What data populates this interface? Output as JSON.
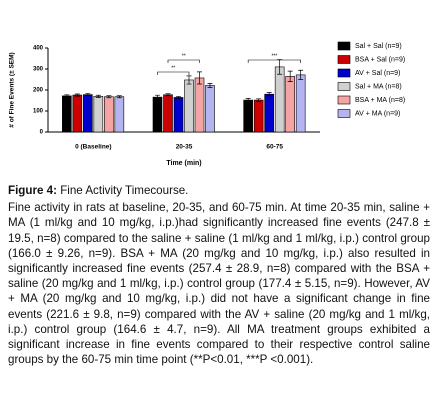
{
  "chart_data": {
    "type": "bar",
    "ylabel": "# of Fine Events (± SEM)",
    "xlabel": "Time (min)",
    "categories": [
      "0 (Baseline)",
      "20-35",
      "60-75"
    ],
    "ylim": [
      0,
      400
    ],
    "yticks": [
      0,
      100,
      200,
      300,
      400
    ],
    "series": [
      {
        "name": "Sal + Sal (n=9)",
        "color": "#000000",
        "values": [
          172,
          166.0,
          152
        ],
        "errors": [
          5,
          9.26,
          8
        ]
      },
      {
        "name": "BSA + Sal (n=9)",
        "color": "#cc0000",
        "values": [
          176,
          177.4,
          152
        ],
        "errors": [
          5,
          5.15,
          6
        ]
      },
      {
        "name": "AV + Sal (n=9)",
        "color": "#0000cc",
        "values": [
          178,
          164.6,
          180
        ],
        "errors": [
          5,
          4.7,
          8
        ]
      },
      {
        "name": "Sal + MA (n=8)",
        "color": "#d0d0d0",
        "values": [
          170,
          247.8,
          310
        ],
        "errors": [
          5,
          19.5,
          35
        ]
      },
      {
        "name": "BSA + MA (n=8)",
        "color": "#f4a4a4",
        "values": [
          168,
          257.4,
          265
        ],
        "errors": [
          5,
          28.9,
          25
        ]
      },
      {
        "name": "AV + MA (n=9)",
        "color": "#b4b4f0",
        "values": [
          168,
          221.6,
          272
        ],
        "errors": [
          5,
          9.8,
          22
        ]
      }
    ],
    "annotations": [
      "**",
      "**",
      "***"
    ]
  },
  "caption": {
    "label": "Figure 4:",
    "title": " Fine Activity Timecourse.",
    "body": "Fine activity in rats at baseline, 20-35, and 60-75 min. At time 20-35 min, saline + MA (1 ml/kg and 10 mg/kg, i.p.)had significantly increased fine events (247.8 ± 19.5, n=8) compared to the saline + saline (1 ml/kg and 1 ml/kg, i.p.) control group (166.0 ± 9.26, n=9). BSA + MA (20 mg/kg and 10 mg/kg, i.p.) also resulted in significantly increased fine events (257.4 ± 28.9, n=8) compared with the BSA + saline (20 mg/kg and 1 ml/kg, i.p.) control group (177.4 ± 5.15, n=9). However, AV + MA (20 mg/kg and 10 mg/kg, i.p.) did not have a significant change in fine events (221.6 ± 9.8, n=9) compared with the AV + saline (20 mg/kg and 1 ml/kg, i.p.) control group (164.6 ± 4.7, n=9). All MA treatment groups exhibited a significant increase in fine events compared to their respective control saline groups by the 60-75 min time point (**P<0.01, ***P <0.001)."
  }
}
